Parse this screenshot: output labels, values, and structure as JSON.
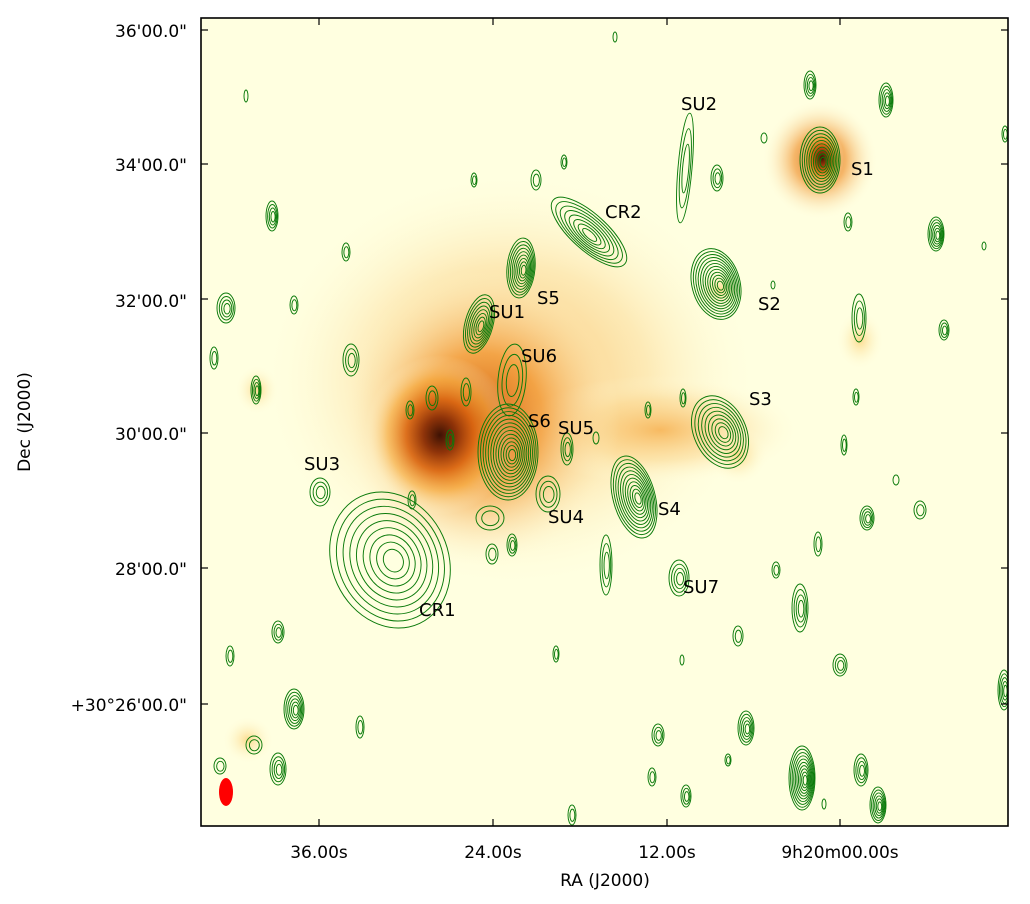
{
  "chart_data": {
    "type": "heatmap",
    "title": "",
    "xlabel": "RA (J2000)",
    "ylabel": "Dec (J2000)",
    "x_ticks": [
      "36.00s",
      "24.00s",
      "12.00s",
      "9h20m00.00s"
    ],
    "y_ticks": [
      "+30°26'00.0\"",
      "28'00.0\"",
      "30'00.0\"",
      "32'00.0\"",
      "34'00.0\"",
      "36'00.0\""
    ],
    "colors": {
      "background": "#ffffe0",
      "emission_peak": "#4a1a05",
      "contour": "#0a7a0a",
      "beam": "#ff0000"
    },
    "grid": false,
    "sources": [
      {
        "label": "S1"
      },
      {
        "label": "S2"
      },
      {
        "label": "S3"
      },
      {
        "label": "S4"
      },
      {
        "label": "S5"
      },
      {
        "label": "S6"
      },
      {
        "label": "SU1"
      },
      {
        "label": "SU2"
      },
      {
        "label": "SU3"
      },
      {
        "label": "SU4"
      },
      {
        "label": "SU5"
      },
      {
        "label": "SU6"
      },
      {
        "label": "SU7"
      },
      {
        "label": "CR1"
      },
      {
        "label": "CR2"
      }
    ]
  }
}
